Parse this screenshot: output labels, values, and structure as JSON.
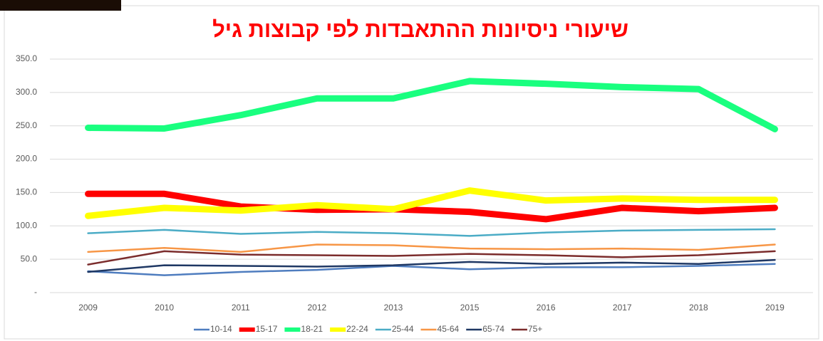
{
  "chart_data": {
    "type": "line",
    "title": "שיעורי ניסיונות ההתאבדות לפי קבוצות גיל",
    "categories": [
      "2009",
      "2010",
      "2011",
      "2012",
      "2013",
      "2015",
      "2016",
      "2017",
      "2018",
      "2019"
    ],
    "ylim": [
      0,
      350
    ],
    "yticks": [
      {
        "value": 0,
        "label": "-"
      },
      {
        "value": 50,
        "label": "50.0"
      },
      {
        "value": 100,
        "label": "100.0"
      },
      {
        "value": 150,
        "label": "150.0"
      },
      {
        "value": 200,
        "label": "200.0"
      },
      {
        "value": 250,
        "label": "250.0"
      },
      {
        "value": 300,
        "label": "300.0"
      },
      {
        "value": 350,
        "label": "350.0"
      }
    ],
    "grid": true,
    "legend": "bottom",
    "series": [
      {
        "name": "10-14",
        "color": "#4f7dbf",
        "width": 2.5,
        "values": [
          32,
          26,
          31,
          34,
          40,
          35,
          38,
          38,
          40,
          43
        ]
      },
      {
        "name": "15-17",
        "color": "#ff0000",
        "width": 9,
        "values": [
          148,
          148,
          129,
          124,
          125,
          121,
          110,
          127,
          122,
          127
        ]
      },
      {
        "name": "18-21",
        "color": "#19ff7f",
        "width": 9,
        "values": [
          247,
          246,
          266,
          291,
          291,
          317,
          313,
          308,
          305,
          245
        ]
      },
      {
        "name": "22-24",
        "color": "#ffff00",
        "width": 9,
        "values": [
          115,
          127,
          123,
          131,
          125,
          153,
          138,
          141,
          139,
          139
        ]
      },
      {
        "name": "25-44",
        "color": "#4bacc6",
        "width": 2.5,
        "values": [
          89,
          94,
          88,
          91,
          89,
          85,
          90,
          93,
          94,
          95
        ]
      },
      {
        "name": "45-64",
        "color": "#f79646",
        "width": 2.5,
        "values": [
          61,
          67,
          61,
          72,
          71,
          66,
          65,
          66,
          64,
          72
        ]
      },
      {
        "name": "65-74",
        "color": "#1f3864",
        "width": 2.5,
        "values": [
          31,
          41,
          40,
          39,
          41,
          46,
          43,
          45,
          43,
          49
        ]
      },
      {
        "name": "75+",
        "color": "#7b2c2c",
        "width": 2.5,
        "values": [
          42,
          62,
          57,
          56,
          55,
          58,
          56,
          53,
          56,
          62
        ]
      }
    ]
  }
}
